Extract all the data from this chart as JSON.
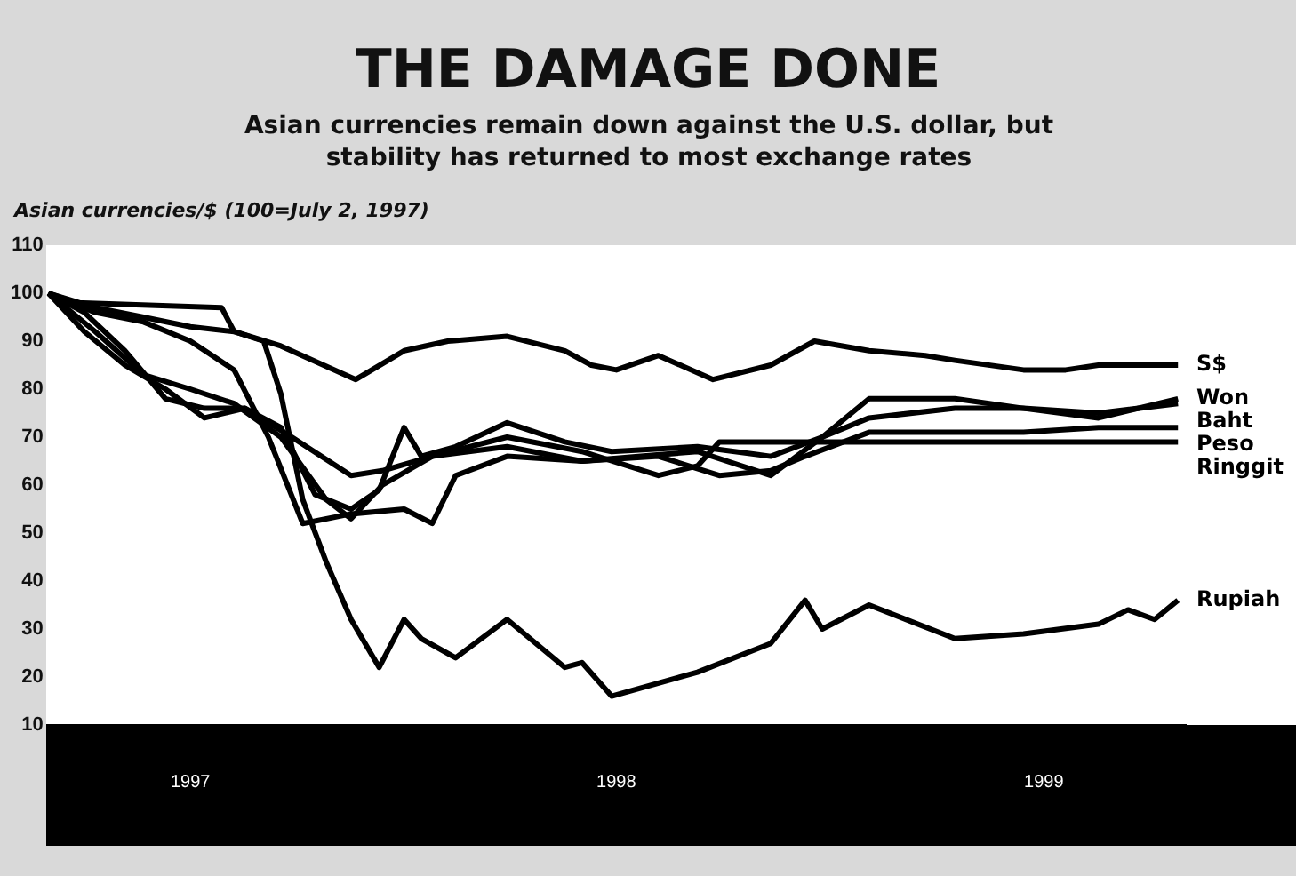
{
  "chart_data": {
    "type": "line",
    "title": "THE DAMAGE DONE",
    "subtitle": "Asian currencies remain down against the U.S. dollar, but stability has returned to most exchange rates",
    "ylabel": "Asian currencies/$ (100=July 2, 1997)",
    "xlim": [
      "1997-07-01",
      "1999-07-01"
    ],
    "xticks": [
      {
        "value": "1997-10-01",
        "label": "1997"
      },
      {
        "value": "1998-07-01",
        "label": "1998"
      },
      {
        "value": "1999-04-01",
        "label": "1999"
      }
    ],
    "ylim": [
      10,
      110
    ],
    "yticks": [
      10,
      20,
      30,
      40,
      50,
      60,
      70,
      80,
      90,
      100,
      110
    ],
    "grid": false,
    "legend": false,
    "series": [
      {
        "name": "S$",
        "color": "#000000",
        "x": [
          "1997-07-02",
          "1997-08-01",
          "1997-09-01",
          "1997-10-01",
          "1997-10-29",
          "1997-11-28",
          "1998-01-15",
          "1998-02-15",
          "1998-03-15",
          "1998-04-22",
          "1998-05-29",
          "1998-06-15",
          "1998-07-01",
          "1998-07-28",
          "1998-09-01",
          "1998-10-08",
          "1998-11-05",
          "1998-12-10",
          "1999-01-15",
          "1999-02-03",
          "1999-03-19",
          "1999-04-15",
          "1999-05-06",
          "1999-06-26"
        ],
        "values": [
          100,
          97,
          95,
          93,
          92,
          89,
          82,
          88,
          90,
          91,
          88,
          85,
          84,
          87,
          82,
          85,
          90,
          88,
          87,
          86,
          84,
          84,
          85,
          85
        ]
      },
      {
        "name": "Won",
        "color": "#000000",
        "x": [
          "1997-07-02",
          "1997-08-01",
          "1997-09-01",
          "1997-10-01",
          "1997-10-29",
          "1997-11-20",
          "1997-12-12",
          "1998-01-12",
          "1998-02-15",
          "1998-03-05",
          "1998-03-20",
          "1998-04-22",
          "1998-06-09",
          "1998-08-22",
          "1998-10-08",
          "1998-11-10",
          "1998-12-10",
          "1999-02-03",
          "1999-03-19",
          "1999-05-06",
          "1999-06-26"
        ],
        "values": [
          100,
          96,
          94,
          90,
          84,
          70,
          52,
          54,
          55,
          52,
          62,
          66,
          65,
          67,
          62,
          70,
          78,
          78,
          76,
          74,
          78
        ]
      },
      {
        "name": "Baht",
        "color": "#000000",
        "x": [
          "1997-07-02",
          "1997-07-25",
          "1997-08-20",
          "1997-09-15",
          "1997-10-10",
          "1997-11-05",
          "1997-11-28",
          "1997-12-20",
          "1998-01-12",
          "1998-01-30",
          "1998-02-15",
          "1998-02-26",
          "1998-03-20",
          "1998-04-22",
          "1998-05-29",
          "1998-06-28",
          "1998-08-22",
          "1998-10-08",
          "1998-11-10",
          "1998-12-10",
          "1999-02-03",
          "1999-03-19",
          "1999-05-06",
          "1999-06-26"
        ],
        "values": [
          100,
          92,
          85,
          80,
          74,
          76,
          72,
          58,
          55,
          59,
          72,
          66,
          68,
          73,
          69,
          67,
          68,
          66,
          70,
          74,
          76,
          76,
          75,
          77
        ]
      },
      {
        "name": "Peso",
        "color": "#000000",
        "x": [
          "1997-07-02",
          "1997-07-25",
          "1997-08-20",
          "1997-09-15",
          "1997-10-10",
          "1997-11-05",
          "1997-12-05",
          "1998-01-12",
          "1998-02-01",
          "1998-03-05",
          "1998-04-22",
          "1998-06-09",
          "1998-07-28",
          "1998-09-05",
          "1998-10-08",
          "1998-10-30",
          "1998-12-10",
          "1999-02-03",
          "1999-03-19",
          "1999-05-06",
          "1999-06-26"
        ],
        "values": [
          100,
          96,
          88,
          78,
          76,
          76,
          70,
          62,
          63,
          66,
          68,
          65,
          66,
          62,
          63,
          66,
          71,
          71,
          71,
          72,
          72
        ]
      },
      {
        "name": "Ringgit",
        "color": "#000000",
        "x": [
          "1997-07-02",
          "1997-08-01",
          "1997-09-01",
          "1997-10-01",
          "1997-10-29",
          "1997-11-28",
          "1997-12-27",
          "1998-01-12",
          "1998-02-01",
          "1998-03-05",
          "1998-04-22",
          "1998-06-09",
          "1998-07-28",
          "1998-08-22",
          "1998-09-05",
          "1998-10-08",
          "1998-12-10",
          "1999-03-19",
          "1999-06-26"
        ],
        "values": [
          100,
          92,
          83,
          80,
          77,
          70,
          57,
          53,
          60,
          66,
          70,
          67,
          62,
          64,
          69,
          69,
          69,
          69,
          69
        ]
      },
      {
        "name": "Rupiah",
        "color": "#000000",
        "x": [
          "1997-07-02",
          "1997-07-20",
          "1997-10-21",
          "1997-10-29",
          "1997-11-17",
          "1997-11-28",
          "1997-12-12",
          "1997-12-27",
          "1998-01-12",
          "1998-01-30",
          "1998-02-15",
          "1998-02-26",
          "1998-03-20",
          "1998-04-22",
          "1998-05-29",
          "1998-06-09",
          "1998-06-28",
          "1998-08-22",
          "1998-10-08",
          "1998-10-30",
          "1998-11-10",
          "1998-12-10",
          "1999-02-03",
          "1999-03-19",
          "1999-05-06",
          "1999-05-25",
          "1999-06-11",
          "1999-06-26"
        ],
        "values": [
          100,
          98,
          97,
          92,
          90,
          79,
          57,
          44,
          32,
          22,
          32,
          28,
          24,
          32,
          22,
          23,
          16,
          21,
          27,
          36,
          30,
          35,
          28,
          29,
          31,
          34,
          32,
          36
        ]
      }
    ]
  }
}
